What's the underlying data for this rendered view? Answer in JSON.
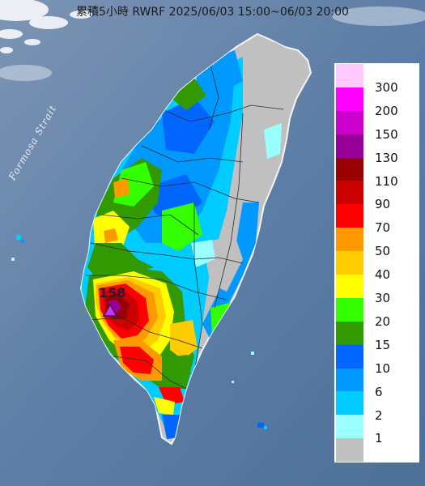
{
  "title": "累積5小時 RWRF 2025/06/03 15:00~06/03 20:00",
  "strait_label": "Formosa Strait",
  "max_value_label": "158",
  "colors": {
    "sea": "#5f7fa3",
    "land_base": "#bcbcbc"
  },
  "legend": [
    {
      "label": "300",
      "color": "#ffc8ff"
    },
    {
      "label": "200",
      "color": "#ff00ff"
    },
    {
      "label": "150",
      "color": "#cc00cc"
    },
    {
      "label": "130",
      "color": "#990099"
    },
    {
      "label": "110",
      "color": "#990000"
    },
    {
      "label": "90",
      "color": "#cc0000"
    },
    {
      "label": "70",
      "color": "#ff0000"
    },
    {
      "label": "50",
      "color": "#ff9900"
    },
    {
      "label": "40",
      "color": "#ffcc00"
    },
    {
      "label": "30",
      "color": "#ffff00"
    },
    {
      "label": "20",
      "color": "#33ff00"
    },
    {
      "label": "15",
      "color": "#339900"
    },
    {
      "label": "10",
      "color": "#0066ff"
    },
    {
      "label": "6",
      "color": "#0099ff"
    },
    {
      "label": "2",
      "color": "#00ccff"
    },
    {
      "label": "1",
      "color": "#99ffff"
    },
    {
      "label": "",
      "color": "#c0c0c0"
    }
  ]
}
